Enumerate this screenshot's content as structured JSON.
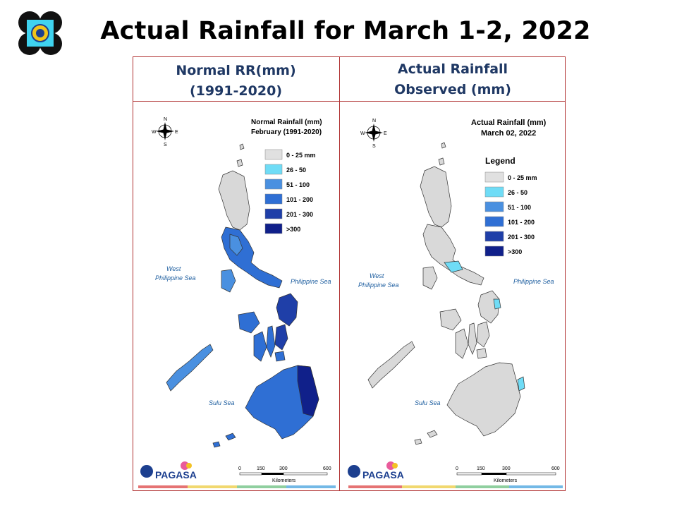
{
  "slide": {
    "title": "Actual Rainfall for March 1-2, 2022"
  },
  "colors": {
    "frame": "#b03030",
    "header_text": "#1f3864",
    "class_0_25": "#e0e0e0",
    "class_26_50": "#6fdcf6",
    "class_51_100": "#4a90e0",
    "class_101_200": "#2f6fd4",
    "class_201_300": "#1f3fa8",
    "class_gt300": "#10208a"
  },
  "left_panel": {
    "header_line1": "Normal RR(mm)",
    "header_line2": "(1991-2020)",
    "map_title_line1": "Normal Rainfall (mm)",
    "map_title_line2": "February (1991-2020)",
    "legend_title": "",
    "legend": [
      "0 - 25 mm",
      "26 - 50",
      "51 - 100",
      "101 - 200",
      "201 - 300",
      ">300"
    ],
    "sea_west_line1": "West",
    "sea_west_line2": "Philippine Sea",
    "sea_east": "Philippine Sea",
    "sea_sulu": "Sulu Sea",
    "scale_ticks": [
      "0",
      "150",
      "300",
      "600"
    ],
    "scale_unit": "Kilometers",
    "brand": "PAGASA"
  },
  "right_panel": {
    "header_line1": "Actual Rainfall",
    "header_line2": "Observed  (mm)",
    "map_title_line1": "Actual Rainfall (mm)",
    "map_title_line2": "March 02, 2022",
    "legend_title": "Legend",
    "legend": [
      "0 - 25 mm",
      "26 - 50",
      "51 - 100",
      "101 - 200",
      "201 - 300",
      ">300"
    ],
    "sea_west_line1": "West",
    "sea_west_line2": "Philippine Sea",
    "sea_east": "Philippine Sea",
    "sea_sulu": "Sulu Sea",
    "scale_ticks": [
      "0",
      "150",
      "300",
      "600"
    ],
    "scale_unit": "Kilometers",
    "brand": "PAGASA"
  },
  "compass": {
    "n": "N",
    "s": "S",
    "e": "E",
    "w": "W"
  }
}
